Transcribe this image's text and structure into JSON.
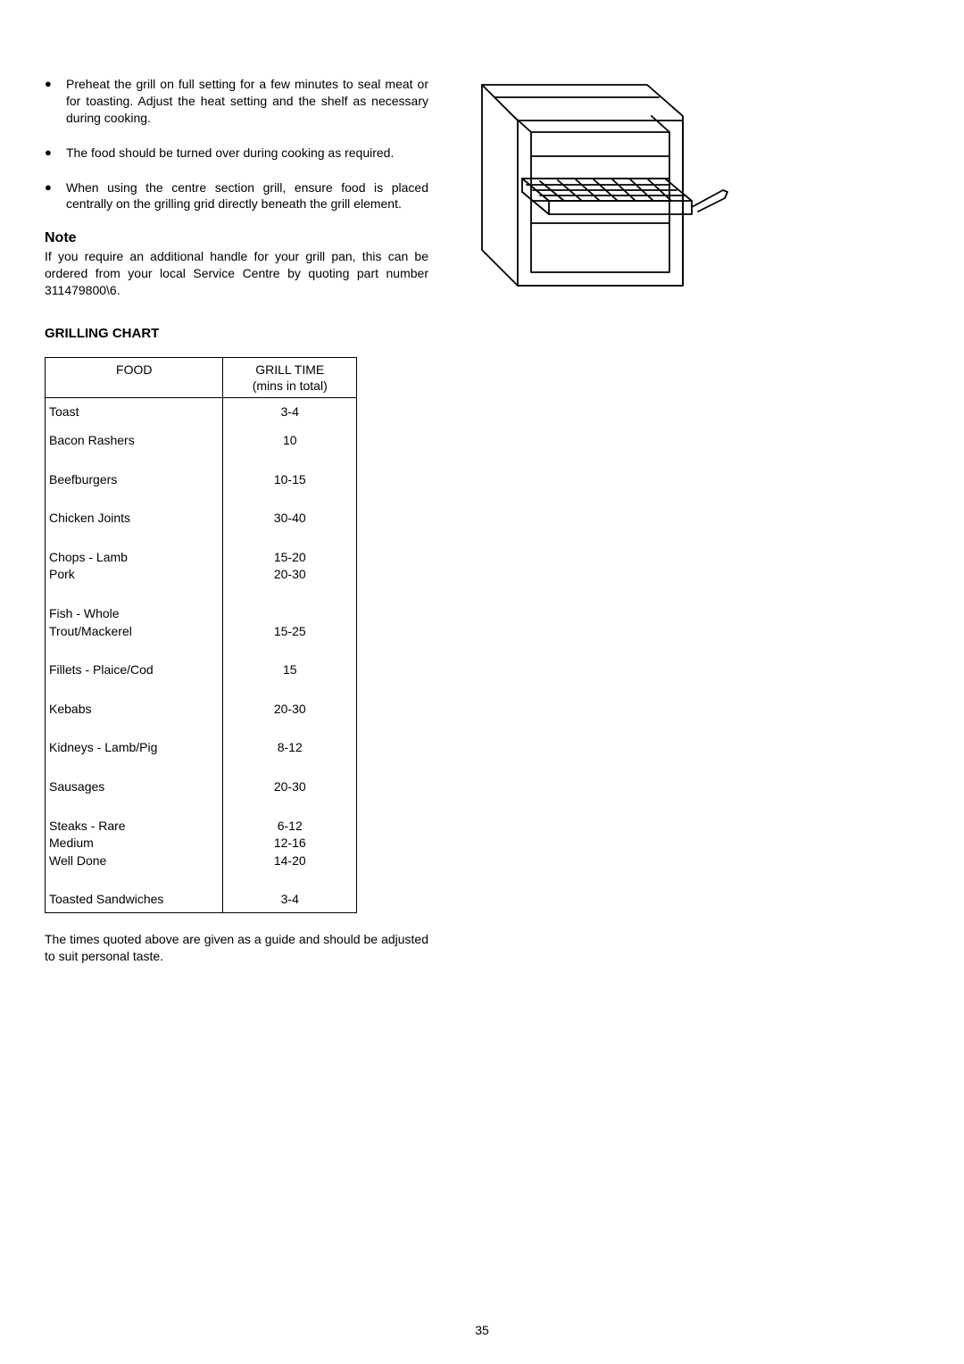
{
  "bullets": [
    "Preheat the grill on full setting for a few minutes to seal meat or for toasting.  Adjust the heat setting and the shelf as necessary during cooking.",
    "The food should be turned over during cooking as required.",
    "When using the centre section grill, ensure food is placed centrally on the grilling grid directly beneath the grill element."
  ],
  "note_heading": "Note",
  "note_text": "If you require an additional handle for your grill pan, this can be ordered from your local Service Centre by quoting part number 311479800\\6.",
  "chart_heading": "GRILLING CHART",
  "table": {
    "headers": {
      "food": "FOOD",
      "time": "GRILL TIME\n(mins in total)"
    },
    "rows": [
      {
        "food": "Toast",
        "time": "3-4",
        "pad": "6px 4px 6px 4px"
      },
      {
        "food": "Bacon  Rashers",
        "time": "10"
      },
      {
        "food": "Beefburgers",
        "time": "10-15"
      },
      {
        "food": "Chicken Joints",
        "time": "30-40"
      },
      {
        "food": "Chops - Lamb\n             Pork",
        "time": "15-20\n20-30"
      },
      {
        "food": "Fish - Whole\n          Trout/Mackerel",
        "time": "\n15-25"
      },
      {
        "food": "Fillets - Plaice/Cod",
        "time": "15"
      },
      {
        "food": "Kebabs",
        "time": "20-30"
      },
      {
        "food": "Kidneys - Lamb/Pig",
        "time": "8-12"
      },
      {
        "food": "Sausages",
        "time": "20-30"
      },
      {
        "food": "Steaks - Rare\n              Medium\n              Well Done",
        "time": "6-12\n12-16\n14-20"
      },
      {
        "food": "Toasted Sandwiches",
        "time": "3-4"
      }
    ]
  },
  "caption": "The times quoted above are given as a guide and should be adjusted to suit personal taste.",
  "page_number": "35",
  "colors": {
    "text": "#000000",
    "background": "#ffffff",
    "border": "#000000"
  }
}
